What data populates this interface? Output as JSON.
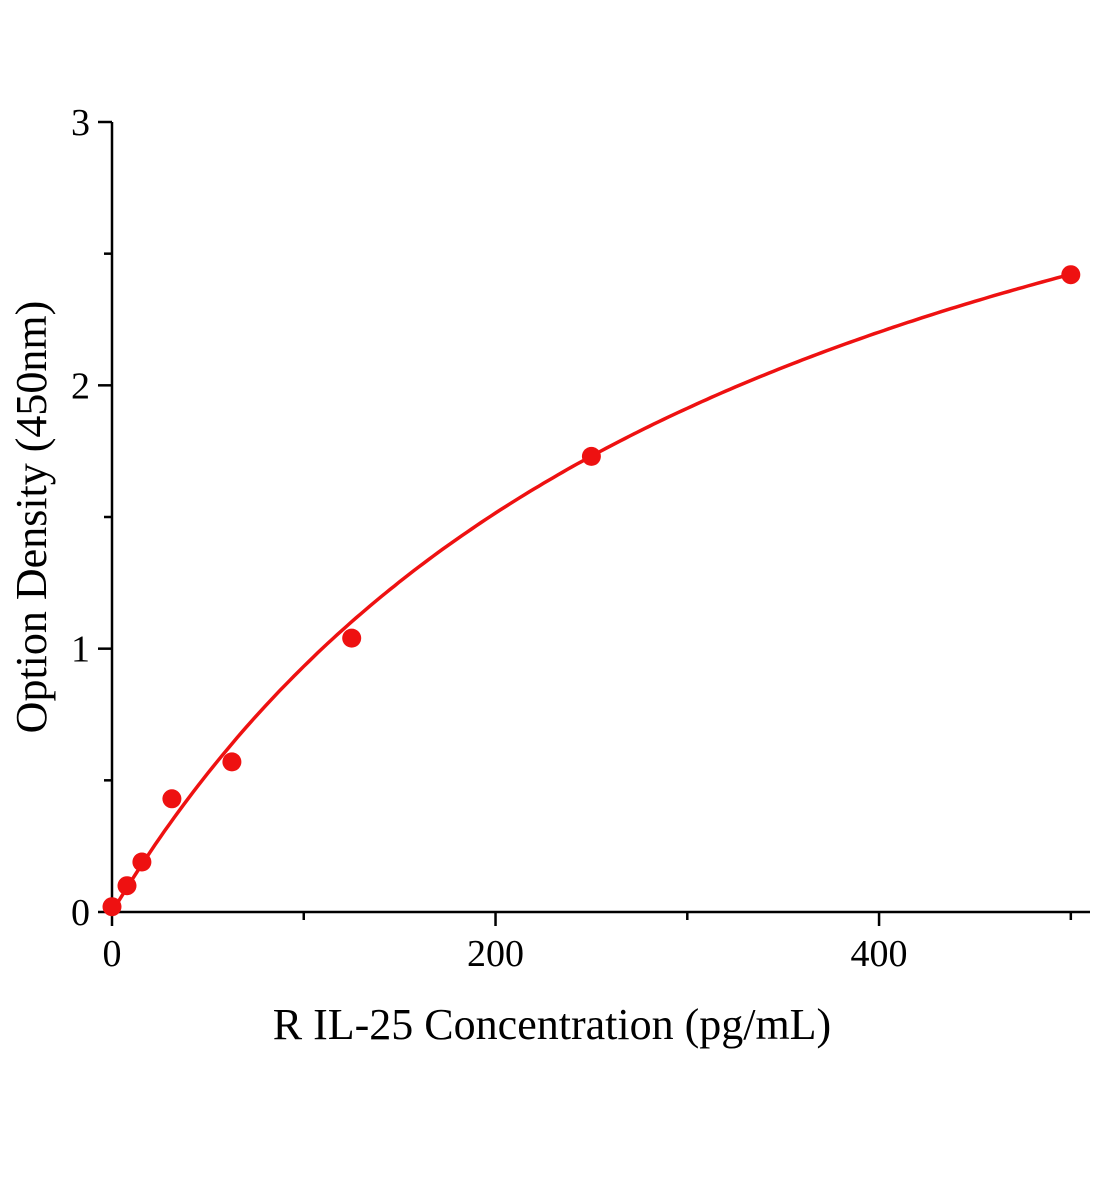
{
  "chart_data": {
    "type": "scatter",
    "title": "",
    "xlabel": "R IL-25 Concentration (pg/mL)",
    "ylabel": "Option Density (450nm)",
    "x": [
      0,
      7.8,
      15.6,
      31.25,
      62.5,
      125,
      250,
      500
    ],
    "y": [
      0.02,
      0.1,
      0.19,
      0.43,
      0.57,
      1.04,
      1.73,
      2.42
    ],
    "xlim": [
      0,
      510
    ],
    "ylim": [
      0,
      3
    ],
    "x_major_ticks": [
      0,
      200,
      400
    ],
    "x_minor_ticks": [
      100,
      300,
      500
    ],
    "y_major_ticks": [
      0,
      1,
      2,
      3
    ],
    "y_minor_ticks": [
      0.5,
      1.5,
      2.5
    ],
    "grid": false,
    "legend": false,
    "axis_color": "#000000",
    "marker_color": "#ee1111",
    "line_color": "#ee1111",
    "fit": {
      "type": "saturation",
      "vmax": 4.03,
      "km": 332
    }
  }
}
